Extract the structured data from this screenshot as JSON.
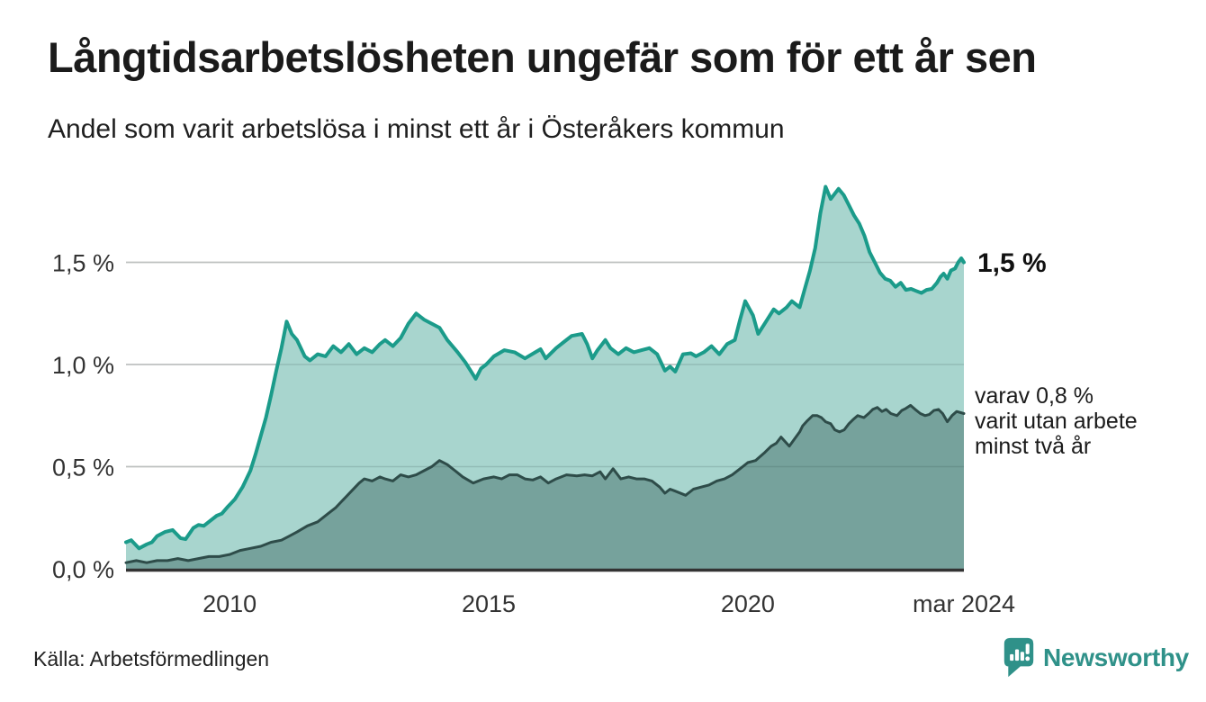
{
  "header": {
    "title": "Långtidsarbetslösheten ungefär som för ett år sen",
    "subtitle": "Andel som varit arbetslösa i minst ett år i Österåkers kommun"
  },
  "annotations": {
    "latest_total_label": "1,5 %",
    "secondary_label": "varav 0,8 %\nvarit utan arbete\nminst två år"
  },
  "footer": {
    "source": "Källa: Arbetsförmedlingen",
    "brand": "Newsworthy"
  },
  "colors": {
    "accent_teal": "#1b9b8a",
    "light_fill": "#a8d5ce",
    "dark_stroke": "#2e4c49",
    "dark_fill": "#76a29c",
    "gridline": "#dcdcdc",
    "baseline": "#333333",
    "brand_teal": "#2f9189",
    "text": "#1b1b1b"
  },
  "chart_data": {
    "type": "area",
    "title": "Långtidsarbetslösheten ungefär som för ett år sen",
    "subtitle": "Andel som varit arbetslösa i minst ett år i Österåkers kommun",
    "xlabel": "",
    "ylabel": "",
    "x_range": [
      2008.0,
      2024.17
    ],
    "ylim": [
      0,
      1.95
    ],
    "grid": true,
    "legend_position": "right-annotations",
    "x_axis_ticks": [
      {
        "x": 2010,
        "label": "2010"
      },
      {
        "x": 2015,
        "label": "2015"
      },
      {
        "x": 2020,
        "label": "2020"
      },
      {
        "x": 2024.17,
        "label": "mar 2024"
      }
    ],
    "y_axis_ticks": [
      {
        "value": 0.0,
        "label": "0,0 %"
      },
      {
        "value": 0.5,
        "label": "0,5 %"
      },
      {
        "value": 1.0,
        "label": "1,0 %"
      },
      {
        "value": 1.5,
        "label": "1,5 %"
      }
    ],
    "series": [
      {
        "name": "Arbetslösa minst ett år",
        "end_label": "1,5 %",
        "latest_value": 1.5,
        "stroke": "#1b9b8a",
        "fill": "#a8d5ce",
        "stroke_width": 4,
        "x": [
          2008.0,
          2008.1,
          2008.25,
          2008.4,
          2008.5,
          2008.6,
          2008.75,
          2008.9,
          2009.05,
          2009.15,
          2009.3,
          2009.4,
          2009.5,
          2009.6,
          2009.75,
          2009.85,
          2009.95,
          2010.1,
          2010.25,
          2010.4,
          2010.5,
          2010.6,
          2010.7,
          2010.8,
          2010.9,
          2011.0,
          2011.1,
          2011.2,
          2011.3,
          2011.45,
          2011.55,
          2011.7,
          2011.85,
          2012.0,
          2012.15,
          2012.3,
          2012.45,
          2012.6,
          2012.75,
          2012.9,
          2013.0,
          2013.15,
          2013.3,
          2013.45,
          2013.6,
          2013.75,
          2013.9,
          2014.05,
          2014.2,
          2014.4,
          2014.55,
          2014.75,
          2014.85,
          2014.95,
          2015.1,
          2015.3,
          2015.5,
          2015.7,
          2015.9,
          2016.0,
          2016.1,
          2016.3,
          2016.45,
          2016.6,
          2016.8,
          2016.9,
          2017.0,
          2017.1,
          2017.25,
          2017.35,
          2017.5,
          2017.65,
          2017.8,
          2017.95,
          2018.1,
          2018.25,
          2018.4,
          2018.5,
          2018.6,
          2018.75,
          2018.9,
          2019.0,
          2019.15,
          2019.3,
          2019.45,
          2019.6,
          2019.75,
          2019.85,
          2019.95,
          2020.1,
          2020.2,
          2020.35,
          2020.5,
          2020.6,
          2020.75,
          2020.85,
          2021.0,
          2021.1,
          2021.2,
          2021.3,
          2021.4,
          2021.5,
          2021.6,
          2021.75,
          2021.85,
          2021.95,
          2022.05,
          2022.15,
          2022.25,
          2022.35,
          2022.45,
          2022.55,
          2022.65,
          2022.75,
          2022.85,
          2022.95,
          2023.05,
          2023.15,
          2023.25,
          2023.35,
          2023.45,
          2023.55,
          2023.65,
          2023.72,
          2023.78,
          2023.85,
          2023.92,
          2024.0,
          2024.06,
          2024.12,
          2024.17
        ],
        "values": [
          0.13,
          0.14,
          0.1,
          0.12,
          0.13,
          0.16,
          0.18,
          0.19,
          0.15,
          0.145,
          0.2,
          0.215,
          0.21,
          0.23,
          0.26,
          0.27,
          0.3,
          0.34,
          0.4,
          0.48,
          0.56,
          0.65,
          0.74,
          0.85,
          0.97,
          1.08,
          1.21,
          1.15,
          1.12,
          1.04,
          1.02,
          1.05,
          1.04,
          1.09,
          1.06,
          1.1,
          1.05,
          1.08,
          1.06,
          1.1,
          1.12,
          1.09,
          1.13,
          1.2,
          1.25,
          1.22,
          1.2,
          1.18,
          1.12,
          1.06,
          1.01,
          0.93,
          0.98,
          1.0,
          1.04,
          1.07,
          1.06,
          1.03,
          1.06,
          1.075,
          1.03,
          1.08,
          1.11,
          1.14,
          1.15,
          1.1,
          1.03,
          1.07,
          1.12,
          1.08,
          1.05,
          1.08,
          1.06,
          1.07,
          1.08,
          1.05,
          0.97,
          0.99,
          0.965,
          1.05,
          1.055,
          1.04,
          1.06,
          1.09,
          1.05,
          1.1,
          1.12,
          1.22,
          1.31,
          1.24,
          1.15,
          1.21,
          1.27,
          1.25,
          1.28,
          1.31,
          1.28,
          1.37,
          1.46,
          1.57,
          1.74,
          1.87,
          1.81,
          1.86,
          1.83,
          1.78,
          1.73,
          1.69,
          1.63,
          1.55,
          1.5,
          1.45,
          1.42,
          1.41,
          1.38,
          1.4,
          1.365,
          1.37,
          1.36,
          1.35,
          1.365,
          1.37,
          1.4,
          1.43,
          1.445,
          1.42,
          1.46,
          1.47,
          1.5,
          1.52,
          1.5
        ]
      },
      {
        "name": "varav utan arbete minst två år",
        "end_label": "varav 0,8 % varit utan arbete minst två år",
        "latest_value": 0.8,
        "stroke": "#2e4c49",
        "fill": "#76a29c",
        "stroke_width": 3,
        "x": [
          2008.0,
          2008.2,
          2008.4,
          2008.6,
          2008.8,
          2009.0,
          2009.2,
          2009.4,
          2009.6,
          2009.8,
          2010.0,
          2010.2,
          2010.4,
          2010.6,
          2010.8,
          2011.0,
          2011.15,
          2011.3,
          2011.5,
          2011.7,
          2011.9,
          2012.05,
          2012.2,
          2012.35,
          2012.5,
          2012.6,
          2012.75,
          2012.9,
          2013.0,
          2013.15,
          2013.3,
          2013.45,
          2013.6,
          2013.75,
          2013.9,
          2014.05,
          2014.2,
          2014.35,
          2014.5,
          2014.7,
          2014.9,
          2015.1,
          2015.25,
          2015.4,
          2015.55,
          2015.7,
          2015.85,
          2016.0,
          2016.15,
          2016.3,
          2016.5,
          2016.7,
          2016.85,
          2017.0,
          2017.15,
          2017.25,
          2017.4,
          2017.55,
          2017.7,
          2017.85,
          2018.0,
          2018.15,
          2018.3,
          2018.4,
          2018.5,
          2018.6,
          2018.8,
          2018.95,
          2019.1,
          2019.25,
          2019.4,
          2019.55,
          2019.7,
          2019.85,
          2020.0,
          2020.15,
          2020.33,
          2020.45,
          2020.55,
          2020.64,
          2020.73,
          2020.8,
          2020.9,
          2021.0,
          2021.06,
          2021.15,
          2021.25,
          2021.34,
          2021.42,
          2021.5,
          2021.6,
          2021.68,
          2021.77,
          2021.86,
          2021.95,
          2022.03,
          2022.12,
          2022.24,
          2022.33,
          2022.41,
          2022.5,
          2022.59,
          2022.67,
          2022.76,
          2022.88,
          2022.97,
          2023.05,
          2023.14,
          2023.23,
          2023.33,
          2023.42,
          2023.5,
          2023.59,
          2023.68,
          2023.76,
          2023.85,
          2023.94,
          2024.03,
          2024.17
        ],
        "values": [
          0.03,
          0.04,
          0.03,
          0.04,
          0.04,
          0.05,
          0.04,
          0.05,
          0.06,
          0.06,
          0.07,
          0.09,
          0.1,
          0.11,
          0.13,
          0.14,
          0.16,
          0.18,
          0.21,
          0.23,
          0.27,
          0.3,
          0.34,
          0.38,
          0.42,
          0.44,
          0.43,
          0.45,
          0.44,
          0.43,
          0.46,
          0.45,
          0.46,
          0.48,
          0.5,
          0.53,
          0.51,
          0.48,
          0.45,
          0.42,
          0.44,
          0.45,
          0.44,
          0.46,
          0.46,
          0.44,
          0.435,
          0.45,
          0.42,
          0.44,
          0.46,
          0.455,
          0.46,
          0.455,
          0.475,
          0.44,
          0.49,
          0.44,
          0.45,
          0.44,
          0.44,
          0.43,
          0.4,
          0.37,
          0.39,
          0.38,
          0.36,
          0.39,
          0.4,
          0.41,
          0.43,
          0.44,
          0.46,
          0.49,
          0.52,
          0.53,
          0.57,
          0.6,
          0.615,
          0.645,
          0.62,
          0.6,
          0.635,
          0.67,
          0.7,
          0.725,
          0.75,
          0.75,
          0.74,
          0.72,
          0.71,
          0.68,
          0.67,
          0.68,
          0.71,
          0.73,
          0.75,
          0.74,
          0.76,
          0.78,
          0.79,
          0.77,
          0.78,
          0.76,
          0.75,
          0.775,
          0.785,
          0.8,
          0.78,
          0.76,
          0.75,
          0.755,
          0.775,
          0.78,
          0.76,
          0.72,
          0.75,
          0.77,
          0.76
        ]
      }
    ]
  }
}
